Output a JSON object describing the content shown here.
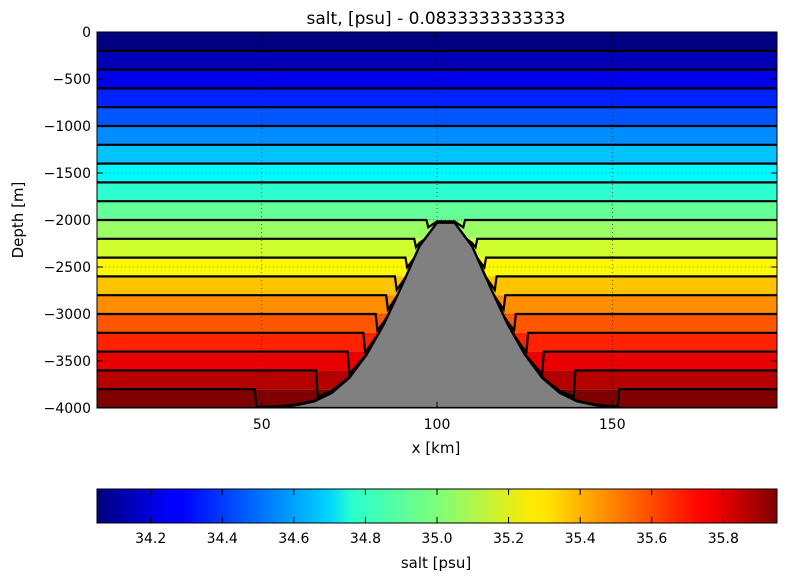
{
  "chart_data": {
    "type": "heatmap",
    "title": "salt, [psu] - 0.0833333333333",
    "xlabel": "x [km]",
    "ylabel": "Depth [m]",
    "xlim": [
      3,
      197
    ],
    "ylim": [
      -4000,
      0
    ],
    "xticks": [
      50,
      100,
      150
    ],
    "yticks": [
      0,
      -500,
      -1000,
      -1500,
      -2000,
      -2500,
      -3000,
      -3500,
      -4000
    ],
    "grid": true,
    "layer_interfaces_m": [
      0,
      -200,
      -400,
      -600,
      -800,
      -1000,
      -1200,
      -1400,
      -1600,
      -1800,
      -2000,
      -2200,
      -2400,
      -2600,
      -2800,
      -3000,
      -3200,
      -3400,
      -3600,
      -3800,
      -4000
    ],
    "layer_salinity_psu": [
      34.05,
      34.15,
      34.25,
      34.35,
      34.45,
      34.55,
      34.65,
      34.75,
      34.85,
      34.95,
      35.05,
      35.15,
      35.25,
      35.35,
      35.45,
      35.55,
      35.65,
      35.75,
      35.85,
      35.95
    ],
    "ridge_profile": {
      "x_km": [
        3,
        48,
        55,
        60,
        65,
        70,
        75,
        80,
        85,
        90,
        95,
        100,
        105,
        110,
        115,
        120,
        125,
        130,
        135,
        140,
        145,
        152,
        197
      ],
      "depth_m": [
        -4000,
        -4000,
        -3990,
        -3970,
        -3930,
        -3840,
        -3680,
        -3430,
        -3100,
        -2700,
        -2280,
        -2030,
        -2030,
        -2280,
        -2700,
        -3100,
        -3430,
        -3680,
        -3840,
        -3930,
        -3970,
        -4000,
        -4000
      ]
    },
    "ridge_color": "#808080",
    "colorbar": {
      "label": "salt [psu]",
      "range": [
        34.05,
        35.95
      ],
      "ticks": [
        "34.2",
        "34.4",
        "34.6",
        "34.8",
        "35.0",
        "35.2",
        "35.4",
        "35.6",
        "35.8"
      ],
      "colormap": "jet"
    }
  }
}
